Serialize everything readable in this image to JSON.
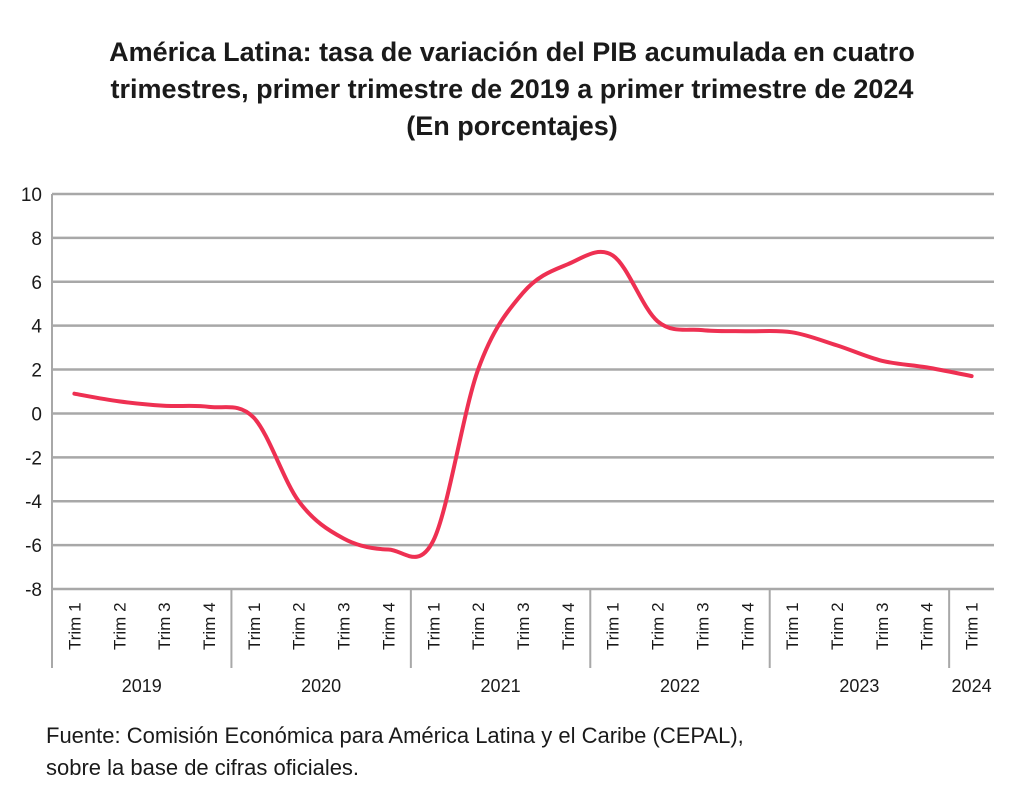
{
  "title_lines": [
    "América Latina: tasa de variación del PIB acumulada en cuatro",
    "trimestres, primer trimestre de 2019 a primer trimestre de 2024",
    "(En porcentajes)"
  ],
  "source_lines": [
    "Fuente: Comisión Económica para América Latina y el Caribe (CEPAL),",
    "sobre la base de cifras oficiales."
  ],
  "colors": {
    "line": "#ee3052",
    "grid": "#a8a8a8"
  },
  "chart_data": {
    "type": "line",
    "categories": [
      "Trim 1",
      "Trim 2",
      "Trim 3",
      "Trim 4",
      "Trim 1",
      "Trim 2",
      "Trim 3",
      "Trim 4",
      "Trim 1",
      "Trim 2",
      "Trim 3",
      "Trim 4",
      "Trim 1",
      "Trim 2",
      "Trim 3",
      "Trim 4",
      "Trim 1",
      "Trim 2",
      "Trim 3",
      "Trim 4",
      "Trim 1"
    ],
    "years": [
      {
        "label": "2019",
        "count": 4
      },
      {
        "label": "2020",
        "count": 4
      },
      {
        "label": "2021",
        "count": 4
      },
      {
        "label": "2022",
        "count": 4
      },
      {
        "label": "2023",
        "count": 4
      },
      {
        "label": "2024",
        "count": 1
      }
    ],
    "series": [
      {
        "values": [
          0.9,
          0.55,
          0.35,
          0.3,
          -0.2,
          -4.0,
          -5.7,
          -6.2,
          -5.8,
          2.0,
          5.5,
          6.8,
          7.2,
          4.2,
          3.8,
          3.75,
          3.7,
          3.1,
          2.4,
          2.1,
          1.7
        ]
      }
    ],
    "yticks": [
      10,
      8,
      6,
      4,
      2,
      0,
      -2,
      -4,
      -6,
      -8
    ],
    "ylim": [
      -8,
      10
    ],
    "grid": true
  }
}
